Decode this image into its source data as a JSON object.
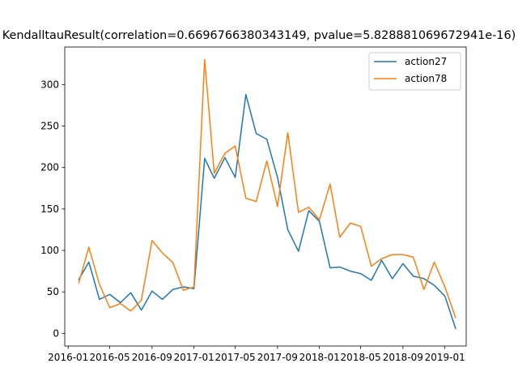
{
  "chart_data": {
    "type": "line",
    "title": "KendalltauResult(correlation=0.6696766380343149, pvalue=5.828881069672941e-16)",
    "xlabel": "",
    "ylabel": "",
    "x_tick_labels": [
      "2016-01",
      "2016-05",
      "2016-09",
      "2017-01",
      "2017-05",
      "2017-09",
      "2018-01",
      "2018-05",
      "2018-09",
      "2019-01"
    ],
    "y_tick_labels": [
      "0",
      "50",
      "100",
      "150",
      "200",
      "250",
      "300"
    ],
    "y_ticks": [
      0,
      50,
      100,
      150,
      200,
      250,
      300
    ],
    "xlim": [
      "2015-12-22",
      "2019-03-04"
    ],
    "ylim": [
      -15.3,
      345.3
    ],
    "grid": false,
    "legend_position": "top-right",
    "x": [
      "2016-02-01",
      "2016-03-01",
      "2016-04-01",
      "2016-05-01",
      "2016-06-01",
      "2016-07-01",
      "2016-08-01",
      "2016-09-01",
      "2016-10-01",
      "2016-11-01",
      "2016-12-01",
      "2017-01-01",
      "2017-02-01",
      "2017-03-01",
      "2017-04-01",
      "2017-05-01",
      "2017-06-01",
      "2017-07-01",
      "2017-08-01",
      "2017-09-01",
      "2017-10-01",
      "2017-11-01",
      "2017-12-01",
      "2018-01-01",
      "2018-02-01",
      "2018-03-01",
      "2018-04-01",
      "2018-05-01",
      "2018-06-01",
      "2018-07-01",
      "2018-08-01",
      "2018-09-01",
      "2018-10-01",
      "2018-11-01",
      "2018-12-01",
      "2019-01-01",
      "2019-02-01"
    ],
    "series": [
      {
        "name": "action27",
        "color": "#1f77b4",
        "values": [
          65,
          86,
          41,
          47,
          37,
          49,
          28,
          51,
          41,
          53,
          56,
          54,
          211,
          187,
          212,
          188,
          288,
          241,
          234,
          188,
          125,
          99,
          148,
          135,
          79,
          80,
          75,
          72,
          64,
          88,
          66,
          84,
          69,
          66,
          58,
          45,
          6
        ]
      },
      {
        "name": "action78",
        "color": "#ff7f0e",
        "values": [
          61,
          104,
          59,
          31,
          36,
          27,
          40,
          112,
          97,
          85,
          52,
          56,
          330,
          193,
          217,
          226,
          163,
          159,
          208,
          153,
          242,
          146,
          152,
          137,
          180,
          116,
          133,
          129,
          81,
          90,
          95,
          95,
          92,
          53,
          86,
          56,
          19
        ]
      }
    ]
  }
}
